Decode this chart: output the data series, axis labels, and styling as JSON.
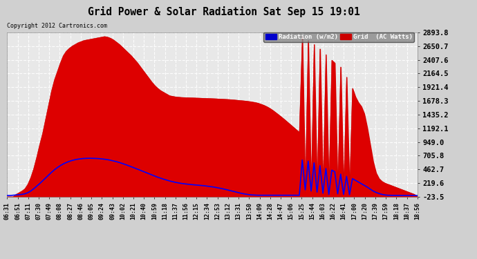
{
  "title": "Grid Power & Solar Radiation Sat Sep 15 19:01",
  "copyright": "Copyright 2012 Cartronics.com",
  "plot_bg_color": "#e8e8e8",
  "fig_bg_color": "#d0d0d0",
  "title_color": "#000000",
  "yticks": [
    2893.8,
    2650.7,
    2407.6,
    2164.5,
    1921.4,
    1678.3,
    1435.2,
    1192.1,
    949.0,
    705.8,
    462.7,
    219.6,
    -23.5
  ],
  "ymin": -23.5,
  "ymax": 2893.8,
  "legend_radiation_label": "Radiation (w/m2)",
  "legend_grid_label": "Grid  (AC Watts)",
  "legend_radiation_bg": "#0000cc",
  "legend_grid_bg": "#cc0000",
  "xtick_labels": [
    "06:31",
    "06:51",
    "07:11",
    "07:30",
    "07:49",
    "08:08",
    "08:27",
    "08:46",
    "09:05",
    "09:24",
    "09:43",
    "10:02",
    "10:21",
    "10:40",
    "10:59",
    "11:18",
    "11:37",
    "11:56",
    "12:15",
    "12:34",
    "12:53",
    "13:12",
    "13:31",
    "13:50",
    "14:09",
    "14:28",
    "14:47",
    "15:06",
    "15:25",
    "15:44",
    "16:03",
    "16:22",
    "16:41",
    "17:00",
    "17:20",
    "17:39",
    "17:59",
    "18:18",
    "18:37",
    "18:56"
  ],
  "grid_power_data": [
    -23.5,
    -23.5,
    -23.5,
    20,
    50,
    80,
    120,
    200,
    320,
    480,
    680,
    900,
    1100,
    1350,
    1600,
    1850,
    2050,
    2200,
    2350,
    2480,
    2560,
    2610,
    2650,
    2680,
    2710,
    2730,
    2750,
    2760,
    2770,
    2780,
    2790,
    2800,
    2810,
    2820,
    2810,
    2790,
    2760,
    2720,
    2680,
    2630,
    2580,
    2530,
    2480,
    2420,
    2360,
    2290,
    2220,
    2150,
    2080,
    2010,
    1950,
    1900,
    1860,
    1830,
    1800,
    1770,
    1760,
    1750,
    1745,
    1740,
    1738,
    1736,
    1734,
    1732,
    1730,
    1728,
    1726,
    1724,
    1722,
    1720,
    1718,
    1715,
    1712,
    1710,
    1707,
    1704,
    1700,
    1695,
    1690,
    1685,
    1680,
    1675,
    1668,
    1660,
    1650,
    1638,
    1620,
    1600,
    1575,
    1545,
    1510,
    1470,
    1430,
    1388,
    1345,
    1300,
    1255,
    1210,
    1165,
    1120,
    2820,
    50,
    2750,
    50,
    2680,
    50,
    2600,
    50,
    2500,
    50,
    2400,
    2350,
    50,
    2280,
    50,
    2100,
    50,
    1900,
    1750,
    1650,
    1580,
    1450,
    1200,
    900,
    600,
    400,
    300,
    250,
    220,
    200,
    180,
    160,
    140,
    120,
    100,
    80,
    60,
    40,
    20,
    -23.5
  ],
  "radiation_data": [
    0,
    0,
    5,
    10,
    15,
    20,
    30,
    50,
    80,
    120,
    165,
    210,
    260,
    310,
    360,
    410,
    455,
    495,
    530,
    560,
    585,
    605,
    622,
    635,
    645,
    652,
    657,
    660,
    661,
    660,
    658,
    655,
    650,
    644,
    636,
    626,
    614,
    601,
    586,
    569,
    551,
    532,
    512,
    492,
    471,
    450,
    428,
    407,
    386,
    365,
    345,
    325,
    307,
    290,
    274,
    259,
    246,
    234,
    224,
    215,
    208,
    202,
    196,
    191,
    187,
    182,
    177,
    172,
    165,
    158,
    150,
    141,
    131,
    120,
    108,
    95,
    82,
    68,
    55,
    43,
    32,
    23,
    15,
    10,
    7,
    5,
    5,
    5,
    5,
    5,
    5,
    5,
    5,
    5,
    5,
    5,
    5,
    5,
    5,
    5,
    630,
    100,
    610,
    80,
    580,
    60,
    530,
    40,
    480,
    20,
    450,
    420,
    30,
    380,
    20,
    340,
    15,
    300,
    270,
    240,
    210,
    180,
    150,
    115,
    80,
    55,
    35,
    20,
    10,
    5,
    3,
    2,
    2,
    1,
    1,
    0,
    0,
    0,
    0,
    0
  ]
}
